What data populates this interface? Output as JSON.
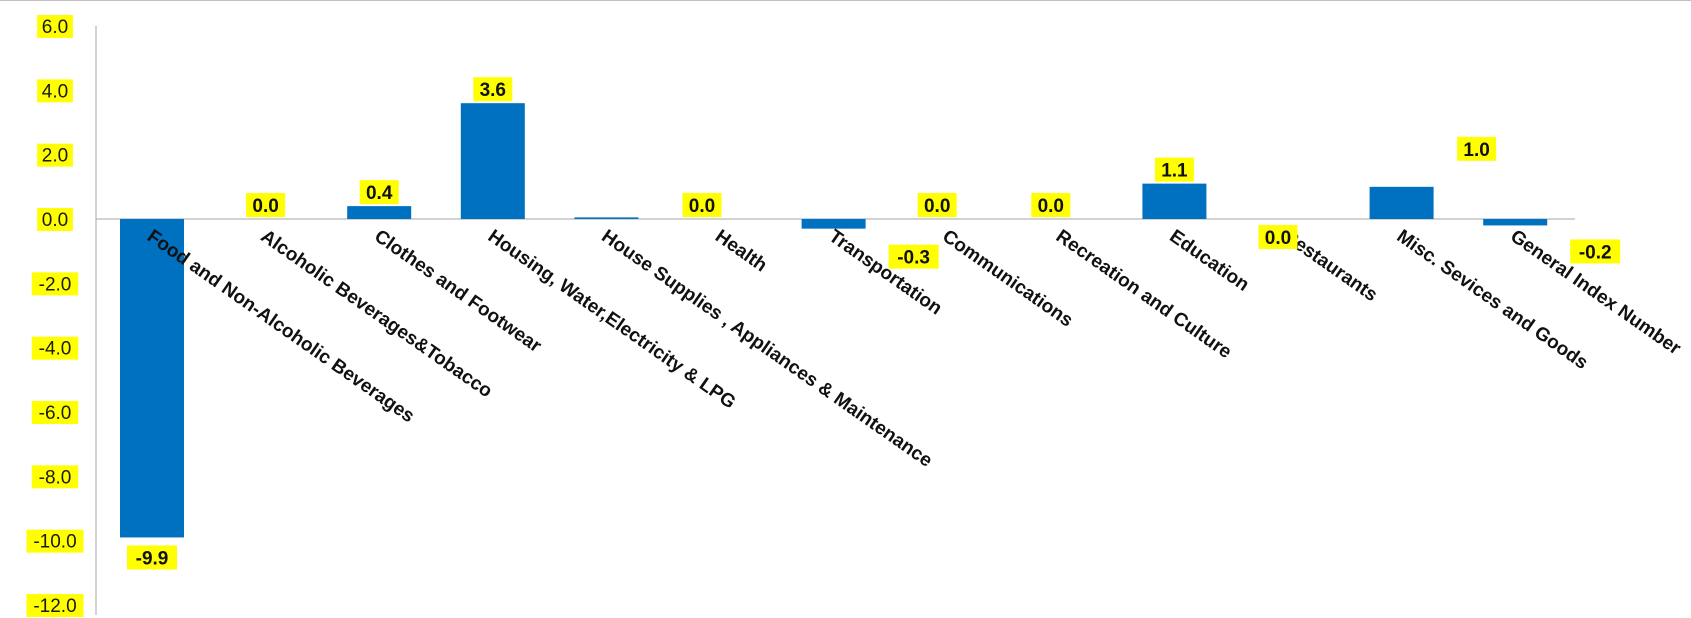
{
  "chart_data": {
    "type": "bar",
    "title": "",
    "xlabel": "",
    "ylabel": "",
    "ylim": [
      -12,
      6
    ],
    "yticks": [
      6.0,
      4.0,
      2.0,
      0.0,
      -2.0,
      -4.0,
      -6.0,
      -8.0,
      -10.0,
      -12.0
    ],
    "ytick_labels": [
      "6.0",
      "4.0",
      "2.0",
      "0.0",
      "-2.0",
      "-4.0",
      "-6.0",
      "-8.0",
      "-10.0",
      "-12.0"
    ],
    "grid": false,
    "legend": "none",
    "categories": [
      "Food and Non-Alcoholic Beverages",
      "Alcoholic Beverages&Tobacco",
      "Clothes and Footwear",
      "Housing, Water,Electricity & LPG",
      "House Supplies , Appliances & Maintenance",
      "Health",
      "Transportation",
      "Communications",
      "Recreation and Culture",
      "Education",
      "Restaurants",
      "Misc. Sevices and Goods",
      "General Index Number"
    ],
    "values": [
      -9.9,
      0.0,
      0.4,
      3.6,
      0.05,
      0.0,
      -0.3,
      0.0,
      0.0,
      1.1,
      0.0,
      1.0,
      -0.2
    ],
    "data_labels": [
      "-9.9",
      "0.0",
      "0.4",
      "3.6",
      "",
      "0.0",
      "-0.3",
      "0.0",
      "0.0",
      "1.1",
      "0.0",
      "1.0",
      "-0.2"
    ],
    "colors": {
      "bar": "#0070c0",
      "label_highlight": "#ffff00",
      "axis": "#a6a6a6",
      "text": "#111111"
    }
  }
}
